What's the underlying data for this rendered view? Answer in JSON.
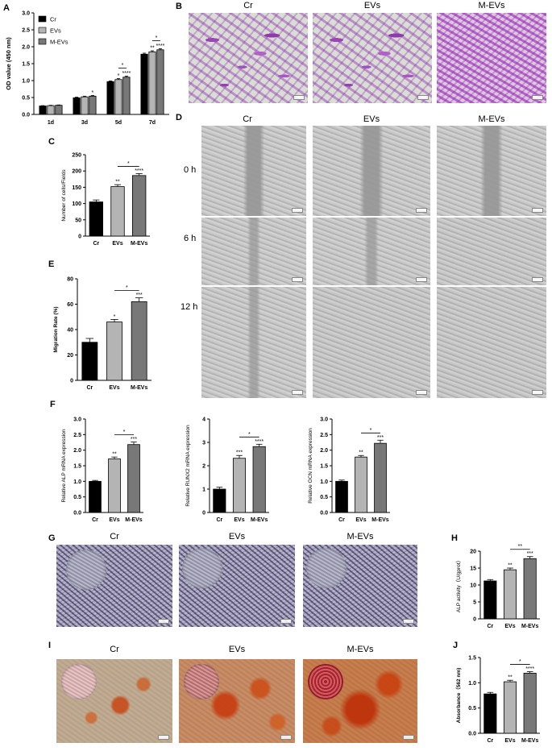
{
  "figure": {
    "panels": {
      "A": "A",
      "B": "B",
      "C": "C",
      "D": "D",
      "E": "E",
      "F": "F",
      "G": "G",
      "H": "H",
      "I": "I",
      "J": "J"
    },
    "groups": [
      "Cr",
      "EVs",
      "M-EVs"
    ],
    "colors": {
      "Cr": "#000000",
      "EVs": "#b4b4b4",
      "M-EVs": "#787878"
    },
    "timepoints": [
      "0 h",
      "6 h",
      "12 h"
    ]
  },
  "chart_data": [
    {
      "id": "A",
      "type": "bar",
      "categories": [
        "1d",
        "3d",
        "5d",
        "7d"
      ],
      "series": [
        {
          "name": "Cr",
          "values": [
            0.25,
            0.49,
            0.97,
            1.78
          ]
        },
        {
          "name": "EVs",
          "values": [
            0.26,
            0.52,
            1.03,
            1.85
          ]
        },
        {
          "name": "M-EVs",
          "values": [
            0.27,
            0.54,
            1.1,
            1.91
          ]
        }
      ],
      "errors": [
        [
          0.01,
          0.02,
          0.02,
          0.03
        ],
        [
          0.01,
          0.02,
          0.03,
          0.03
        ],
        [
          0.01,
          0.02,
          0.03,
          0.03
        ]
      ],
      "stars": [
        [
          "",
          "",
          "",
          ""
        ],
        [
          "",
          "",
          "*",
          "**"
        ],
        [
          "",
          "*",
          "****",
          "****"
        ]
      ],
      "brackets": [
        {
          "cat": 2,
          "from": 1,
          "to": 2,
          "label": "*"
        },
        {
          "cat": 3,
          "from": 1,
          "to": 2,
          "label": "*"
        }
      ],
      "ylabel": "OD value (450 nm)",
      "ylim": [
        0,
        3.0
      ],
      "yticks": [
        "0.0",
        "0.5",
        "1.0",
        "1.5",
        "2.0",
        "2.5",
        "3.0"
      ],
      "legend": "top-left"
    },
    {
      "id": "C",
      "type": "bar",
      "categories": [
        "Cr",
        "EVs",
        "M-EVs"
      ],
      "values": [
        105,
        152,
        186
      ],
      "errors": [
        6,
        6,
        6
      ],
      "stars": [
        "",
        "**",
        "****"
      ],
      "brackets": [
        {
          "from": 1,
          "to": 2,
          "label": "*"
        }
      ],
      "ylabel": "Number of cells/Fields",
      "ylim": [
        0,
        250
      ],
      "yticks": [
        "0",
        "50",
        "100",
        "150",
        "200",
        "250"
      ]
    },
    {
      "id": "E",
      "type": "bar",
      "categories": [
        "Cr",
        "EVs",
        "M-EVs"
      ],
      "values": [
        30,
        46,
        62
      ],
      "errors": [
        3,
        2,
        3
      ],
      "stars": [
        "",
        "*",
        "***"
      ],
      "brackets": [
        {
          "from": 1,
          "to": 2,
          "label": "*"
        }
      ],
      "ylabel": "Migration Rate (%)",
      "ylim": [
        0,
        80
      ],
      "yticks": [
        "0",
        "20",
        "40",
        "60",
        "80"
      ]
    },
    {
      "id": "F1",
      "type": "bar",
      "categories": [
        "Cr",
        "EVs",
        "M-EVs"
      ],
      "values": [
        1.0,
        1.72,
        2.18
      ],
      "errors": [
        0.03,
        0.06,
        0.08
      ],
      "stars": [
        "",
        "**",
        "***"
      ],
      "brackets": [
        {
          "from": 1,
          "to": 2,
          "label": "*"
        }
      ],
      "ylabel": "Relative ALP mRNA expression",
      "ylim": [
        0,
        3.0
      ],
      "yticks": [
        "0.0",
        "0.5",
        "1.0",
        "1.5",
        "2.0",
        "2.5",
        "3.0"
      ]
    },
    {
      "id": "F2",
      "type": "bar",
      "categories": [
        "Cr",
        "EVs",
        "M-EVs"
      ],
      "values": [
        1.0,
        2.32,
        2.82
      ],
      "errors": [
        0.08,
        0.12,
        0.1
      ],
      "stars": [
        "",
        "***",
        "****"
      ],
      "brackets": [
        {
          "from": 1,
          "to": 2,
          "label": "*"
        }
      ],
      "ylabel": "Relative RUNX2 mRNA expression",
      "ylim": [
        0,
        4
      ],
      "yticks": [
        "0",
        "1",
        "2",
        "3",
        "4"
      ]
    },
    {
      "id": "F3",
      "type": "bar",
      "categories": [
        "Cr",
        "EVs",
        "M-EVs"
      ],
      "values": [
        1.0,
        1.78,
        2.22
      ],
      "errors": [
        0.04,
        0.05,
        0.1
      ],
      "stars": [
        "",
        "**",
        "***"
      ],
      "brackets": [
        {
          "from": 1,
          "to": 2,
          "label": "*"
        }
      ],
      "ylabel": "Relative OCN mRNA expression",
      "ylim": [
        0,
        3.0
      ],
      "yticks": [
        "0.0",
        "0.5",
        "1.0",
        "1.5",
        "2.0",
        "2.5",
        "3.0"
      ]
    },
    {
      "id": "H",
      "type": "bar",
      "categories": [
        "Cr",
        "EVs",
        "M-EVs"
      ],
      "values": [
        11.2,
        14.5,
        17.8
      ],
      "errors": [
        0.4,
        0.5,
        0.6
      ],
      "stars": [
        "",
        "**",
        "***"
      ],
      "brackets": [
        {
          "from": 1,
          "to": 2,
          "label": "**"
        }
      ],
      "ylabel": "ALP activity（U/gprot）",
      "ylim": [
        0,
        20
      ],
      "yticks": [
        "0",
        "5",
        "10",
        "15",
        "20"
      ]
    },
    {
      "id": "J",
      "type": "bar",
      "categories": [
        "Cr",
        "EVs",
        "M-EVs"
      ],
      "values": [
        0.78,
        1.02,
        1.19
      ],
      "errors": [
        0.03,
        0.03,
        0.03
      ],
      "stars": [
        "",
        "**",
        "****"
      ],
      "brackets": [
        {
          "from": 1,
          "to": 2,
          "label": "*"
        }
      ],
      "ylabel": "Absorbance（562 nm)",
      "ylim": [
        0,
        1.5
      ],
      "yticks": [
        "0.0",
        "0.5",
        "1.0",
        "1.5"
      ]
    }
  ]
}
